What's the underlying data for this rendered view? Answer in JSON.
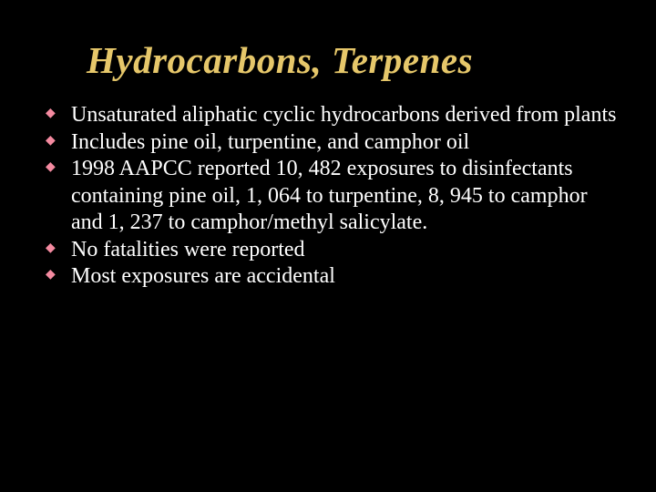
{
  "slide": {
    "title": "Hydrocarbons, Terpenes",
    "title_color": "#e6c76a",
    "title_fontsize": 41,
    "title_italic": true,
    "background_color": "#000000",
    "body_color": "#ffffff",
    "body_fontsize": 24,
    "bullet_marker_color": "#f48aa0",
    "bullet_marker_glyph": "◆",
    "bullets": [
      "Unsaturated aliphatic cyclic hydrocarbons derived from plants",
      "Includes pine oil, turpentine, and camphor oil",
      "1998 AAPCC reported 10, 482 exposures to disinfectants containing pine oil, 1, 064 to turpentine, 8, 945 to camphor and 1, 237 to camphor/methyl salicylate.",
      "No fatalities were reported",
      "Most exposures are accidental"
    ]
  }
}
